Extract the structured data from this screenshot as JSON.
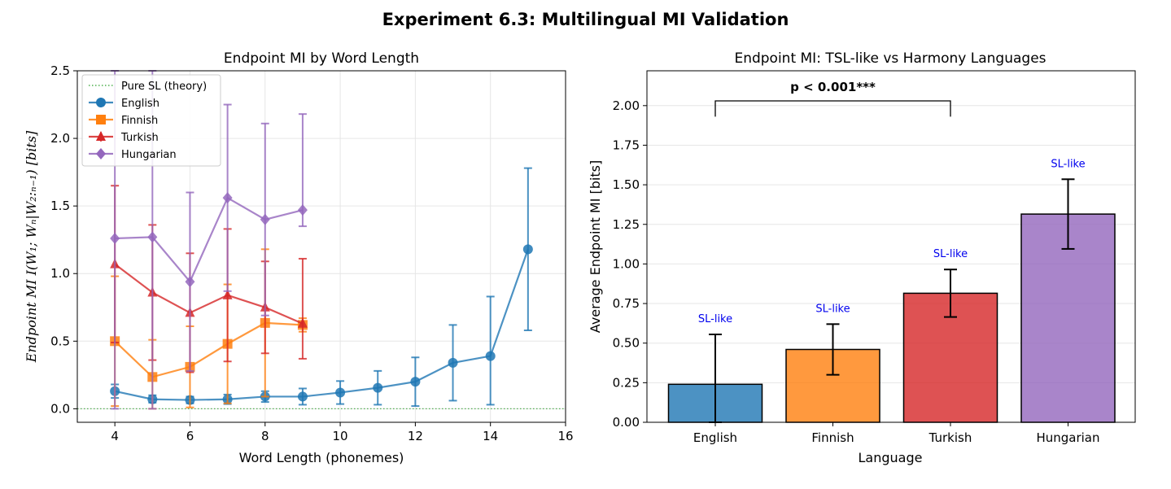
{
  "suptitle": "Experiment 6.3: Multilingual MI Validation",
  "chart_data": [
    {
      "type": "line",
      "title": "Endpoint MI by Word Length",
      "xlabel": "Word Length (phonemes)",
      "ylabel": "Endpoint MI I(W₁; Wₙ|W₂:ₙ₋₁) [bits]",
      "xlim": [
        3,
        16
      ],
      "ylim": [
        -0.1,
        2.5
      ],
      "xticks": [
        "4",
        "6",
        "8",
        "10",
        "12",
        "14",
        "16"
      ],
      "yticks": [
        "0.0",
        "0.5",
        "1.0",
        "1.5",
        "2.0",
        "2.5"
      ],
      "grid": true,
      "legend_position": "upper-left",
      "reference_line": {
        "name": "Pure SL (theory)",
        "y": 0,
        "color": "#2ca02c"
      },
      "series": [
        {
          "name": "English",
          "color": "#1f77b4",
          "marker": "circle",
          "x": [
            4,
            5,
            6,
            7,
            8,
            9,
            10,
            11,
            12,
            13,
            14,
            15
          ],
          "values": [
            0.13,
            0.07,
            0.065,
            0.07,
            0.09,
            0.09,
            0.12,
            0.155,
            0.2,
            0.34,
            0.39,
            1.18
          ],
          "err_upper": [
            0.18,
            0.1,
            0.09,
            0.105,
            0.13,
            0.15,
            0.205,
            0.28,
            0.38,
            0.62,
            0.83,
            1.78
          ],
          "err_lower": [
            0.08,
            0.045,
            0.04,
            0.035,
            0.05,
            0.03,
            0.035,
            0.03,
            0.02,
            0.06,
            0.03,
            0.58
          ]
        },
        {
          "name": "Finnish",
          "color": "#ff7f0e",
          "marker": "square",
          "x": [
            4,
            5,
            6,
            7,
            8,
            9
          ],
          "values": [
            0.5,
            0.235,
            0.31,
            0.48,
            0.635,
            0.62
          ],
          "err_upper": [
            0.98,
            0.51,
            0.61,
            0.92,
            1.18,
            0.67
          ],
          "err_lower": [
            0.02,
            0.0,
            0.01,
            0.04,
            0.09,
            0.57
          ]
        },
        {
          "name": "Turkish",
          "color": "#d62728",
          "marker": "triangle",
          "x": [
            4,
            5,
            6,
            7,
            8,
            9
          ],
          "values": [
            1.07,
            0.86,
            0.71,
            0.84,
            0.75,
            0.63
          ],
          "err_upper": [
            1.65,
            1.36,
            1.15,
            1.33,
            1.09,
            1.11
          ],
          "err_lower": [
            0.49,
            0.36,
            0.27,
            0.35,
            0.41,
            0.37
          ]
        },
        {
          "name": "Hungarian",
          "color": "#9467bd",
          "marker": "diamond",
          "x": [
            4,
            5,
            6,
            7,
            8,
            9
          ],
          "values": [
            1.26,
            1.27,
            0.94,
            1.56,
            1.4,
            1.47
          ],
          "err_upper": [
            2.5,
            2.5,
            1.6,
            2.25,
            2.11,
            2.18
          ],
          "err_lower": [
            0.0,
            0.0,
            0.28,
            0.87,
            0.69,
            1.35
          ]
        }
      ]
    },
    {
      "type": "bar",
      "title": "Endpoint MI: TSL-like vs Harmony Languages",
      "xlabel": "Language",
      "ylabel": "Average Endpoint MI [bits]",
      "ylim": [
        0,
        2.22
      ],
      "yticks": [
        "0.00",
        "0.25",
        "0.50",
        "0.75",
        "1.00",
        "1.25",
        "1.50",
        "1.75",
        "2.00"
      ],
      "grid": true,
      "categories": [
        "English",
        "Finnish",
        "Turkish",
        "Hungarian"
      ],
      "values": [
        0.24,
        0.46,
        0.815,
        1.315
      ],
      "errors": [
        0.315,
        0.16,
        0.15,
        0.22
      ],
      "colors": [
        "#1f77b4",
        "#ff7f0e",
        "#d62728",
        "#9467bd"
      ],
      "bar_labels": [
        "SL-like",
        "SL-like",
        "SL-like",
        "SL-like"
      ],
      "bar_label_color": "#0000ee",
      "significance": {
        "text": "p < 0.001***",
        "from": "English",
        "to": "Turkish"
      }
    }
  ]
}
